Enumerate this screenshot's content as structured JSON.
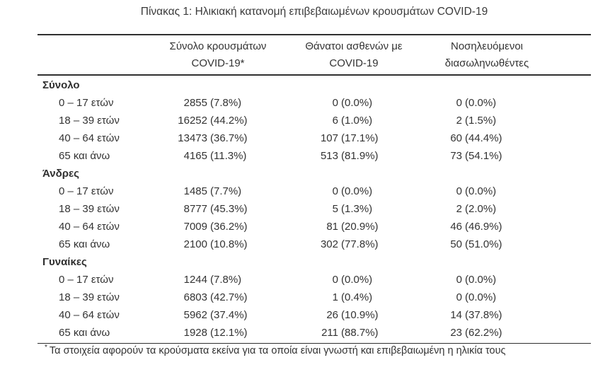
{
  "title": "Πίνακας 1: Ηλικιακή κατανομή επιβεβαιωμένων κρουσμάτων COVID-19",
  "colors": {
    "background": "#ffffff",
    "text": "#333333",
    "rule": "#303030"
  },
  "table": {
    "columns": [
      {
        "line1": "Σύνολο κρουσμάτων",
        "line2": "COVID-19*"
      },
      {
        "line1": "Θάνατοι ασθενών με",
        "line2": "COVID-19"
      },
      {
        "line1": "Νοσηλευόμενοι",
        "line2": "διασωληνωθέντες"
      }
    ],
    "sections": [
      {
        "label": "Σύνολο",
        "rows": [
          {
            "label": "0 – 17 ετών",
            "cases": {
              "n": "2855",
              "p": "(7.8%)"
            },
            "deaths": {
              "n": "0",
              "p": "(0.0%)"
            },
            "intubated": {
              "n": "0",
              "p": "(0.0%)"
            }
          },
          {
            "label": "18 – 39 ετών",
            "cases": {
              "n": "16252",
              "p": "(44.2%)"
            },
            "deaths": {
              "n": "6",
              "p": "(1.0%)"
            },
            "intubated": {
              "n": "2",
              "p": "(1.5%)"
            }
          },
          {
            "label": "40 – 64 ετών",
            "cases": {
              "n": "13473",
              "p": "(36.7%)"
            },
            "deaths": {
              "n": "107",
              "p": "(17.1%)"
            },
            "intubated": {
              "n": "60",
              "p": "(44.4%)"
            }
          },
          {
            "label": "65 και άνω",
            "cases": {
              "n": "4165",
              "p": "(11.3%)"
            },
            "deaths": {
              "n": "513",
              "p": "(81.9%)"
            },
            "intubated": {
              "n": "73",
              "p": "(54.1%)"
            }
          }
        ]
      },
      {
        "label": "Άνδρες",
        "rows": [
          {
            "label": "0 – 17 ετών",
            "cases": {
              "n": "1485",
              "p": "(7.7%)"
            },
            "deaths": {
              "n": "0",
              "p": "(0.0%)"
            },
            "intubated": {
              "n": "0",
              "p": "(0.0%)"
            }
          },
          {
            "label": "18 – 39 ετών",
            "cases": {
              "n": "8777",
              "p": "(45.3%)"
            },
            "deaths": {
              "n": "5",
              "p": "(1.3%)"
            },
            "intubated": {
              "n": "2",
              "p": "(2.0%)"
            }
          },
          {
            "label": "40 – 64 ετών",
            "cases": {
              "n": "7009",
              "p": "(36.2%)"
            },
            "deaths": {
              "n": "81",
              "p": "(20.9%)"
            },
            "intubated": {
              "n": "46",
              "p": "(46.9%)"
            }
          },
          {
            "label": "65 και άνω",
            "cases": {
              "n": "2100",
              "p": "(10.8%)"
            },
            "deaths": {
              "n": "302",
              "p": "(77.8%)"
            },
            "intubated": {
              "n": "50",
              "p": "(51.0%)"
            }
          }
        ]
      },
      {
        "label": "Γυναίκες",
        "rows": [
          {
            "label": "0 – 17 ετών",
            "cases": {
              "n": "1244",
              "p": "(7.8%)"
            },
            "deaths": {
              "n": "0",
              "p": "(0.0%)"
            },
            "intubated": {
              "n": "0",
              "p": "(0.0%)"
            }
          },
          {
            "label": "18 – 39 ετών",
            "cases": {
              "n": "6803",
              "p": "(42.7%)"
            },
            "deaths": {
              "n": "1",
              "p": "(0.4%)"
            },
            "intubated": {
              "n": "0",
              "p": "(0.0%)"
            }
          },
          {
            "label": "40 – 64 ετών",
            "cases": {
              "n": "5962",
              "p": "(37.4%)"
            },
            "deaths": {
              "n": "26",
              "p": "(10.9%)"
            },
            "intubated": {
              "n": "14",
              "p": "(37.8%)"
            }
          },
          {
            "label": "65 και άνω",
            "cases": {
              "n": "1928",
              "p": "(12.1%)"
            },
            "deaths": {
              "n": "211",
              "p": "(88.7%)"
            },
            "intubated": {
              "n": "23",
              "p": "(62.2%)"
            }
          }
        ]
      }
    ]
  },
  "footnote": {
    "marker": "*",
    "text": "Τα στοιχεία αφορούν τα κρούσματα εκείνα για τα οποία είναι γνωστή και επιβεβαιωμένη η ηλικία τους"
  }
}
